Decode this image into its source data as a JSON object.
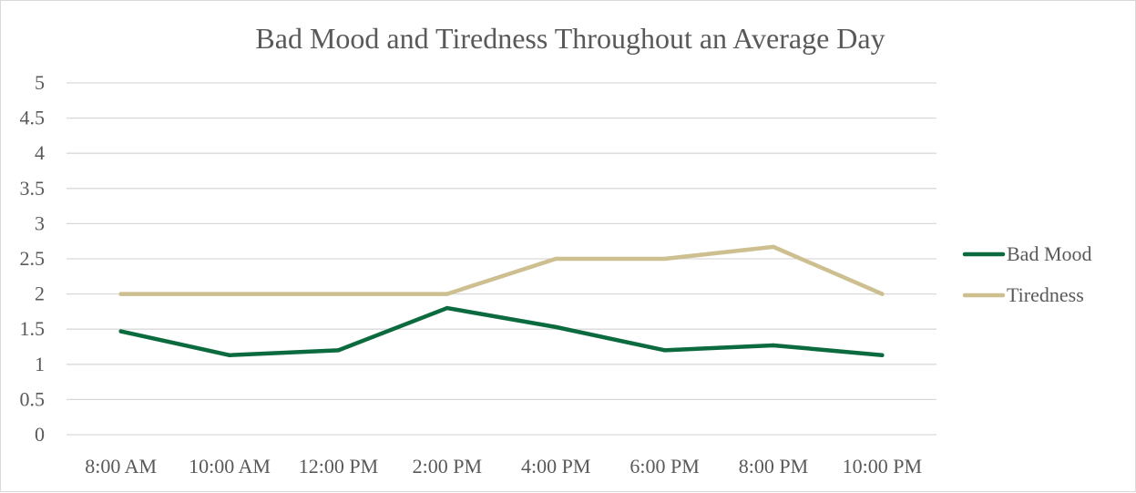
{
  "chart_data": {
    "type": "line",
    "title": "Bad Mood and Tiredness Throughout an Average Day",
    "xlabel": "",
    "ylabel": "",
    "categories": [
      "8:00 AM",
      "10:00 AM",
      "12:00 PM",
      "2:00 PM",
      "4:00 PM",
      "6:00 PM",
      "8:00 PM",
      "10:00 PM"
    ],
    "y_ticks": [
      "0",
      "0.5",
      "1",
      "1.5",
      "2",
      "2.5",
      "3",
      "3.5",
      "4",
      "4.5",
      "5"
    ],
    "ylim": [
      0,
      5
    ],
    "grid": true,
    "legend_position": "right",
    "series": [
      {
        "name": "Bad Mood",
        "color": "#0b6b3f",
        "values": [
          1.47,
          1.13,
          1.2,
          1.8,
          1.53,
          1.2,
          1.27,
          1.13
        ]
      },
      {
        "name": "Tiredness",
        "color": "#cdbf8f",
        "values": [
          2.0,
          2.0,
          2.0,
          2.0,
          2.5,
          2.5,
          2.67,
          2.0
        ]
      }
    ]
  }
}
